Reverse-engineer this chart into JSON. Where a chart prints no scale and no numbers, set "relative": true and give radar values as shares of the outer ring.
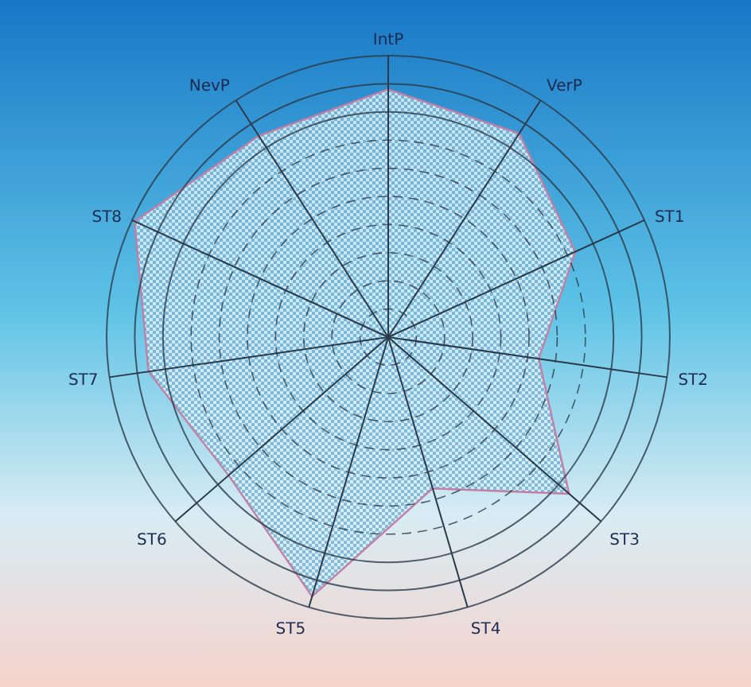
{
  "chart_data": {
    "type": "radar",
    "relative": true,
    "grid": true,
    "categories": [
      "IntP",
      "VerP",
      "ST1",
      "ST2",
      "ST3",
      "ST4",
      "ST5",
      "ST6",
      "ST7",
      "ST8",
      "NevP"
    ],
    "series": [
      {
        "color": "#c27fa6",
        "values": [
          0.88,
          0.86,
          0.73,
          0.54,
          0.85,
          0.56,
          0.96,
          0.75,
          0.86,
          0.99,
          0.85
        ]
      }
    ]
  }
}
